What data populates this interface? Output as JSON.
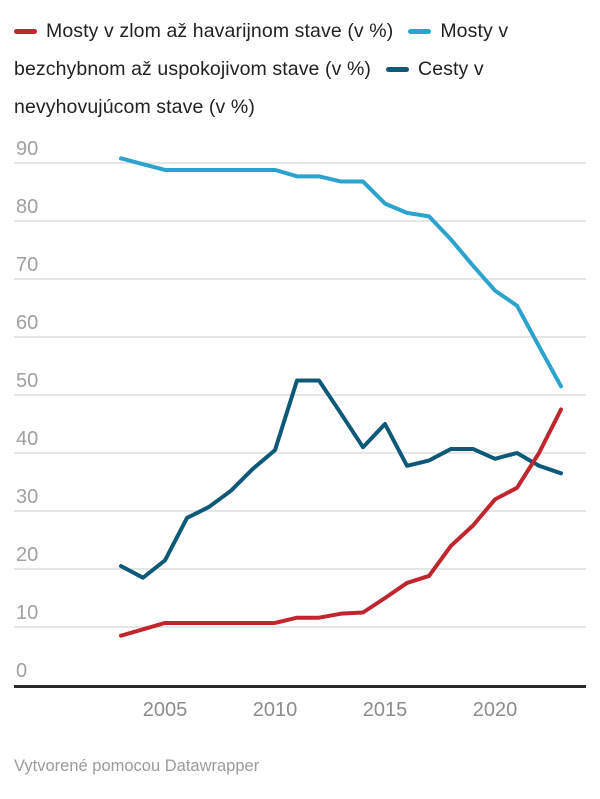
{
  "legend": {
    "items": [
      {
        "label": "Mosty v zlom až havarijnom stave (v %)",
        "color": "#c0262d"
      },
      {
        "label": "Mosty v bezchybnom až uspokojivom stave (v %)",
        "color": "#2ba3cd"
      },
      {
        "label": "Cesty v nevyhovujúcom stave (v %)",
        "color": "#0e5878"
      }
    ]
  },
  "footer": {
    "text": "Vytvorené pomocou Datawrapper"
  },
  "colors": {
    "grid": "#dedede",
    "axis": "#2b2b2b",
    "y_tick_label": "#a0a0a0",
    "x_tick_label": "#8c8c8c",
    "legend_text": "#222222",
    "footer_text": "#9b9b9b"
  },
  "chart_data": {
    "type": "line",
    "title": "",
    "xlabel": "",
    "ylabel": "",
    "x": [
      2003,
      2004,
      2005,
      2006,
      2007,
      2008,
      2009,
      2010,
      2011,
      2012,
      2013,
      2014,
      2015,
      2016,
      2017,
      2018,
      2019,
      2020,
      2021,
      2022,
      2023
    ],
    "series": [
      {
        "name": "Mosty v zlom až havarijnom stave (v %)",
        "color": "#c0262d",
        "values": [
          8.5,
          9.6,
          10.7,
          10.7,
          10.7,
          10.7,
          10.7,
          10.7,
          11.6,
          11.6,
          12.3,
          12.5,
          15,
          17.6,
          18.8,
          24,
          27.5,
          32,
          34,
          40,
          47.5
        ]
      },
      {
        "name": "Mosty v bezchybnom až uspokojivom stave (v %)",
        "color": "#2ba3cd",
        "values": [
          90.8,
          89.8,
          88.8,
          88.8,
          88.8,
          88.8,
          88.8,
          88.8,
          87.7,
          87.7,
          86.8,
          86.8,
          83,
          81.4,
          80.8,
          76.8,
          72.3,
          68,
          65.4,
          58.4,
          51.5
        ]
      },
      {
        "name": "Cesty v nevyhovujúcom stave (v %)",
        "color": "#0e5878",
        "values": [
          20.5,
          18.5,
          21.5,
          28.8,
          30.7,
          33.5,
          37.3,
          40.5,
          52.5,
          52.5,
          46.8,
          41,
          45,
          37.8,
          38.7,
          40.7,
          40.7,
          39,
          40,
          37.8,
          36.5
        ]
      }
    ],
    "yticks": [
      0,
      10,
      20,
      30,
      40,
      50,
      60,
      70,
      80,
      90
    ],
    "xticks": [
      2005,
      2010,
      2015,
      2020
    ],
    "ylim": [
      0,
      93
    ],
    "grid": true,
    "legend_position": "top"
  }
}
